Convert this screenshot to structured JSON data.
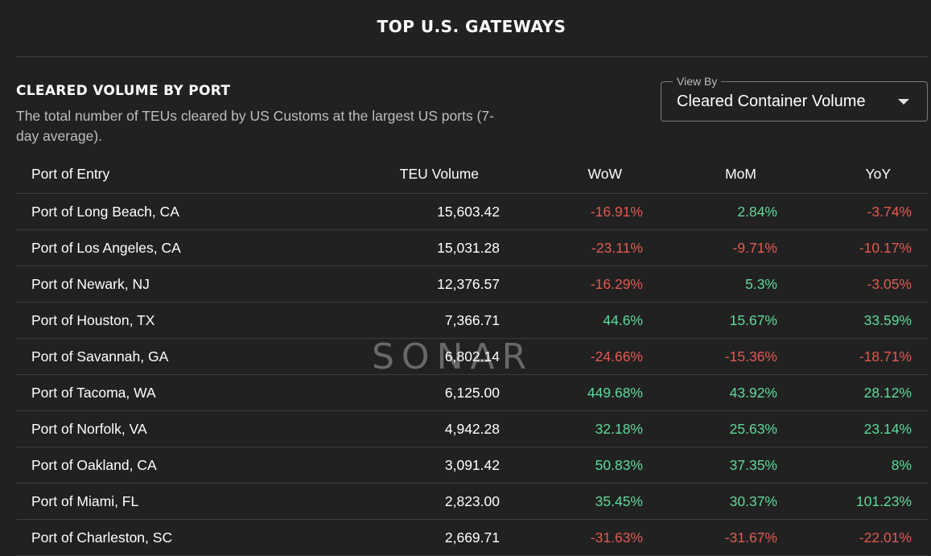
{
  "header": {
    "title": "TOP U.S. GATEWAYS"
  },
  "section": {
    "title": "CLEARED VOLUME BY PORT",
    "description": "The total number of TEUs cleared by US Customs at the largest US ports (7-day average)."
  },
  "view_by": {
    "label": "View By",
    "value": "Cleared Container Volume"
  },
  "table": {
    "columns": [
      "Port of Entry",
      "TEU Volume",
      "WoW",
      "MoM",
      "YoY"
    ],
    "rows": [
      {
        "port": "Port of Long Beach, CA",
        "teu": "15,603.42",
        "wow": "-16.91%",
        "mom": "2.84%",
        "yoy": "-3.74%"
      },
      {
        "port": "Port of Los Angeles, CA",
        "teu": "15,031.28",
        "wow": "-23.11%",
        "mom": "-9.71%",
        "yoy": "-10.17%"
      },
      {
        "port": "Port of Newark, NJ",
        "teu": "12,376.57",
        "wow": "-16.29%",
        "mom": "5.3%",
        "yoy": "-3.05%"
      },
      {
        "port": "Port of Houston, TX",
        "teu": "7,366.71",
        "wow": "44.6%",
        "mom": "15.67%",
        "yoy": "33.59%"
      },
      {
        "port": "Port of Savannah, GA",
        "teu": "6,802.14",
        "wow": "-24.66%",
        "mom": "-15.36%",
        "yoy": "-18.71%"
      },
      {
        "port": "Port of Tacoma, WA",
        "teu": "6,125.00",
        "wow": "449.68%",
        "mom": "43.92%",
        "yoy": "28.12%"
      },
      {
        "port": "Port of Norfolk, VA",
        "teu": "4,942.28",
        "wow": "32.18%",
        "mom": "25.63%",
        "yoy": "23.14%"
      },
      {
        "port": "Port of Oakland, CA",
        "teu": "3,091.42",
        "wow": "50.83%",
        "mom": "37.35%",
        "yoy": "8%"
      },
      {
        "port": "Port of Miami, FL",
        "teu": "2,823.00",
        "wow": "35.45%",
        "mom": "30.37%",
        "yoy": "101.23%"
      },
      {
        "port": "Port of Charleston, SC",
        "teu": "2,669.71",
        "wow": "-31.63%",
        "mom": "-31.67%",
        "yoy": "-22.01%"
      }
    ]
  },
  "watermark": "SONAR",
  "colors": {
    "background": "#212121",
    "positive": "#5ed99a",
    "negative": "#e05a52"
  }
}
